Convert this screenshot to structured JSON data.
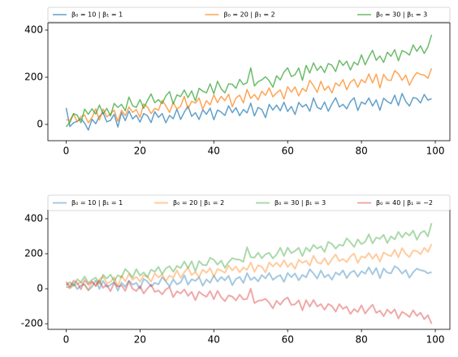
{
  "chart_data": [
    {
      "type": "line",
      "legend": "top",
      "grid": false,
      "alpha": 0.7,
      "line_width": 1.5,
      "xlim": [
        -4.95,
        103.95
      ],
      "xticks": [
        0,
        20,
        40,
        60,
        80,
        100
      ],
      "ylim": [
        -69,
        431
      ],
      "yticks": [
        0,
        200,
        400
      ],
      "x": [
        0,
        1,
        2,
        3,
        4,
        5,
        6,
        7,
        8,
        9,
        10,
        11,
        12,
        13,
        14,
        15,
        16,
        17,
        18,
        19,
        20,
        21,
        22,
        23,
        24,
        25,
        26,
        27,
        28,
        29,
        30,
        31,
        32,
        33,
        34,
        35,
        36,
        37,
        38,
        39,
        40,
        41,
        42,
        43,
        44,
        45,
        46,
        47,
        48,
        49,
        50,
        51,
        52,
        53,
        54,
        55,
        56,
        57,
        58,
        59,
        60,
        61,
        62,
        63,
        64,
        65,
        66,
        67,
        68,
        69,
        70,
        71,
        72,
        73,
        74,
        75,
        76,
        77,
        78,
        79,
        80,
        81,
        82,
        83,
        84,
        85,
        86,
        87,
        88,
        89,
        90,
        91,
        92,
        93,
        94,
        95,
        96,
        97,
        98,
        99
      ],
      "series": [
        {
          "name": "β₀ = 10 | β₁ = 1",
          "color": "#1f77b4",
          "values": [
            70,
            -9,
            7,
            13,
            24,
            5,
            -24,
            22,
            3,
            34,
            50,
            11,
            17,
            43,
            -11,
            50,
            16,
            57,
            23,
            39,
            10,
            46,
            37,
            8,
            54,
            30,
            46,
            7,
            38,
            24,
            65,
            21,
            52,
            78,
            34,
            50,
            21,
            62,
            43,
            69,
            20,
            61,
            52,
            38,
            79,
            50,
            71,
            37,
            63,
            49,
            90,
            36,
            72,
            63,
            29,
            85,
            61,
            82,
            58,
            94,
            55,
            76,
            42,
            93,
            74,
            85,
            56,
            112,
            73,
            64,
            95,
            56,
            87,
            113,
            74,
            85,
            66,
            97,
            113,
            59,
            95,
            86,
            112,
            78,
            104,
            60,
            111,
            97,
            88,
            124,
            80,
            131,
            97,
            78,
            114,
            110,
            91,
            127,
            103,
            109
          ]
        },
        {
          "name": "β₀ = 20 | β₁ = 2",
          "color": "#ff7f0e",
          "values": [
            20,
            17,
            44,
            11,
            33,
            40,
            7,
            29,
            66,
            18,
            65,
            32,
            44,
            61,
            13,
            60,
            37,
            74,
            51,
            63,
            30,
            87,
            74,
            46,
            68,
            60,
            102,
            79,
            51,
            93,
            65,
            77,
            119,
            66,
            98,
            90,
            112,
            64,
            101,
            83,
            125,
            92,
            119,
            101,
            128,
            75,
            112,
            124,
            91,
            148,
            110,
            127,
            104,
            141,
            123,
            155,
            117,
            134,
            146,
            108,
            160,
            137,
            159,
            121,
            153,
            140,
            187,
            164,
            136,
            183,
            145,
            162,
            134,
            176,
            163,
            190,
            147,
            179,
            191,
            158,
            190,
            177,
            214,
            176,
            213,
            155,
            212,
            189,
            186,
            228,
            215,
            187,
            209,
            166,
            198,
            220,
            212,
            209,
            196,
            238
          ]
        },
        {
          "name": "β₀ = 30 | β₁ = 3",
          "color": "#2ca02c",
          "values": [
            -10,
            8,
            46,
            39,
            7,
            65,
            43,
            66,
            44,
            82,
            45,
            68,
            36,
            89,
            72,
            85,
            58,
            116,
            79,
            72,
            105,
            68,
            101,
            129,
            92,
            105,
            88,
            121,
            139,
            87,
            125,
            118,
            146,
            114,
            142,
            100,
            153,
            141,
            134,
            172,
            130,
            183,
            151,
            134,
            172,
            170,
            153,
            191,
            169,
            177,
            240,
            163,
            181,
            189,
            202,
            185,
            158,
            206,
            189,
            222,
            240,
            203,
            211,
            239,
            187,
            250,
            218,
            261,
            229,
            247,
            220,
            258,
            251,
            224,
            272,
            250,
            268,
            231,
            264,
            252,
            295,
            253,
            286,
            314,
            272,
            290,
            263,
            306,
            289,
            317,
            270,
            313,
            306,
            294,
            337,
            310,
            333,
            301,
            329,
            380
          ]
        }
      ]
    },
    {
      "type": "line",
      "legend": "top",
      "grid": false,
      "alpha": 0.4,
      "line_width": 2,
      "xlim": [
        -4.95,
        103.95
      ],
      "xticks": [
        0,
        20,
        40,
        60,
        80,
        100
      ],
      "ylim": [
        -232,
        451
      ],
      "yticks": [
        -200,
        0,
        200,
        400
      ],
      "x": [
        0,
        1,
        2,
        3,
        4,
        5,
        6,
        7,
        8,
        9,
        10,
        11,
        12,
        13,
        14,
        15,
        16,
        17,
        18,
        19,
        20,
        21,
        22,
        23,
        24,
        25,
        26,
        27,
        28,
        29,
        30,
        31,
        32,
        33,
        34,
        35,
        36,
        37,
        38,
        39,
        40,
        41,
        42,
        43,
        44,
        45,
        46,
        47,
        48,
        49,
        50,
        51,
        52,
        53,
        54,
        55,
        56,
        57,
        58,
        59,
        60,
        61,
        62,
        63,
        64,
        65,
        66,
        67,
        68,
        69,
        70,
        71,
        72,
        73,
        74,
        75,
        76,
        77,
        78,
        79,
        80,
        81,
        82,
        83,
        84,
        85,
        86,
        87,
        88,
        89,
        90,
        91,
        92,
        93,
        94,
        95,
        96,
        97,
        98,
        99
      ],
      "series": [
        {
          "name": "β₀ = 10 | β₁ = 1",
          "color": "#1f77b4",
          "values": [
            10,
            6,
            32,
            -2,
            19,
            25,
            -9,
            12,
            48,
            -1,
            45,
            11,
            22,
            38,
            -11,
            35,
            11,
            47,
            23,
            34,
            0,
            56,
            42,
            13,
            34,
            25,
            66,
            42,
            13,
            54,
            25,
            36,
            77,
            23,
            54,
            45,
            66,
            17,
            53,
            34,
            75,
            41,
            67,
            48,
            74,
            20,
            56,
            67,
            33,
            89,
            50,
            66,
            42,
            78,
            59,
            90,
            51,
            67,
            78,
            39,
            90,
            66,
            87,
            48,
            79,
            65,
            111,
            87,
            58,
            104,
            65,
            81,
            52,
            93,
            79,
            105,
            61,
            92,
            103,
            69,
            100,
            86,
            122,
            83,
            119,
            60,
            116,
            92,
            88,
            129,
            115,
            86,
            107,
            63,
            94,
            115,
            106,
            102,
            88,
            95
          ]
        },
        {
          "name": "β₀ = 20 | β₁ = 2",
          "color": "#ff7f0e",
          "values": [
            30,
            2,
            19,
            26,
            38,
            20,
            -8,
            39,
            21,
            53,
            70,
            32,
            39,
            66,
            13,
            75,
            42,
            84,
            51,
            68,
            40,
            77,
            69,
            41,
            88,
            65,
            82,
            44,
            76,
            63,
            105,
            62,
            94,
            121,
            78,
            95,
            67,
            109,
            91,
            118,
            70,
            112,
            104,
            91,
            133,
            105,
            127,
            94,
            121,
            108,
            150,
            97,
            134,
            126,
            93,
            150,
            127,
            149,
            126,
            163,
            125,
            147,
            114,
            166,
            148,
            160,
            132,
            189,
            151,
            143,
            175,
            137,
            169,
            196,
            158,
            170,
            152,
            184,
            201,
            148,
            185,
            177,
            204,
            171,
            198,
            155,
            207,
            194,
            186,
            223,
            180,
            232,
            199,
            181,
            218,
            215,
            197,
            234,
            211,
            255
          ]
        },
        {
          "name": "β₀ = 30 | β₁ = 3",
          "color": "#2ca02c",
          "values": [
            20,
            38,
            16,
            54,
            37,
            70,
            33,
            51,
            64,
            27,
            80,
            58,
            81,
            44,
            77,
            65,
            113,
            91,
            64,
            112,
            75,
            93,
            66,
            109,
            97,
            125,
            83,
            116,
            129,
            97,
            130,
            118,
            156,
            119,
            157,
            100,
            158,
            136,
            134,
            177,
            165,
            138,
            161,
            119,
            152,
            175,
            168,
            166,
            154,
            237,
            180,
            178,
            206,
            174,
            197,
            205,
            173,
            196,
            234,
            187,
            235,
            203,
            216,
            234,
            187,
            235,
            213,
            251,
            229,
            242,
            210,
            268,
            256,
            229,
            252,
            245,
            288,
            266,
            239,
            282,
            255,
            268,
            311,
            259,
            292,
            285,
            308,
            261,
            299,
            282,
            325,
            293,
            321,
            304,
            332,
            280,
            318,
            331,
            299,
            375
          ]
        },
        {
          "name": "β₀ = 40 | β₁ = −2",
          "color": "#d62728",
          "values": [
            40,
            13,
            46,
            34,
            -3,
            50,
            23,
            41,
            14,
            47,
            5,
            23,
            -14,
            34,
            12,
            20,
            -12,
            41,
            -1,
            -13,
            15,
            -27,
            1,
            24,
            -18,
            -10,
            -32,
            -4,
            9,
            -48,
            -15,
            -27,
            -4,
            -41,
            -18,
            -65,
            -17,
            -34,
            -46,
            -13,
            -60,
            -12,
            -49,
            -71,
            -38,
            -45,
            -67,
            -34,
            -61,
            -58,
            0,
            -82,
            -69,
            -66,
            -58,
            -80,
            -112,
            -69,
            -91,
            -63,
            -50,
            -92,
            -89,
            -66,
            -123,
            -65,
            -102,
            -64,
            -101,
            -88,
            -120,
            -87,
            -99,
            -131,
            -88,
            -115,
            -102,
            -144,
            -116,
            -133,
            -95,
            -142,
            -114,
            -91,
            -138,
            -125,
            -157,
            -119,
            -141,
            -118,
            -170,
            -132,
            -144,
            -161,
            -123,
            -155,
            -137,
            -174,
            -151,
            -200
          ]
        }
      ]
    }
  ]
}
